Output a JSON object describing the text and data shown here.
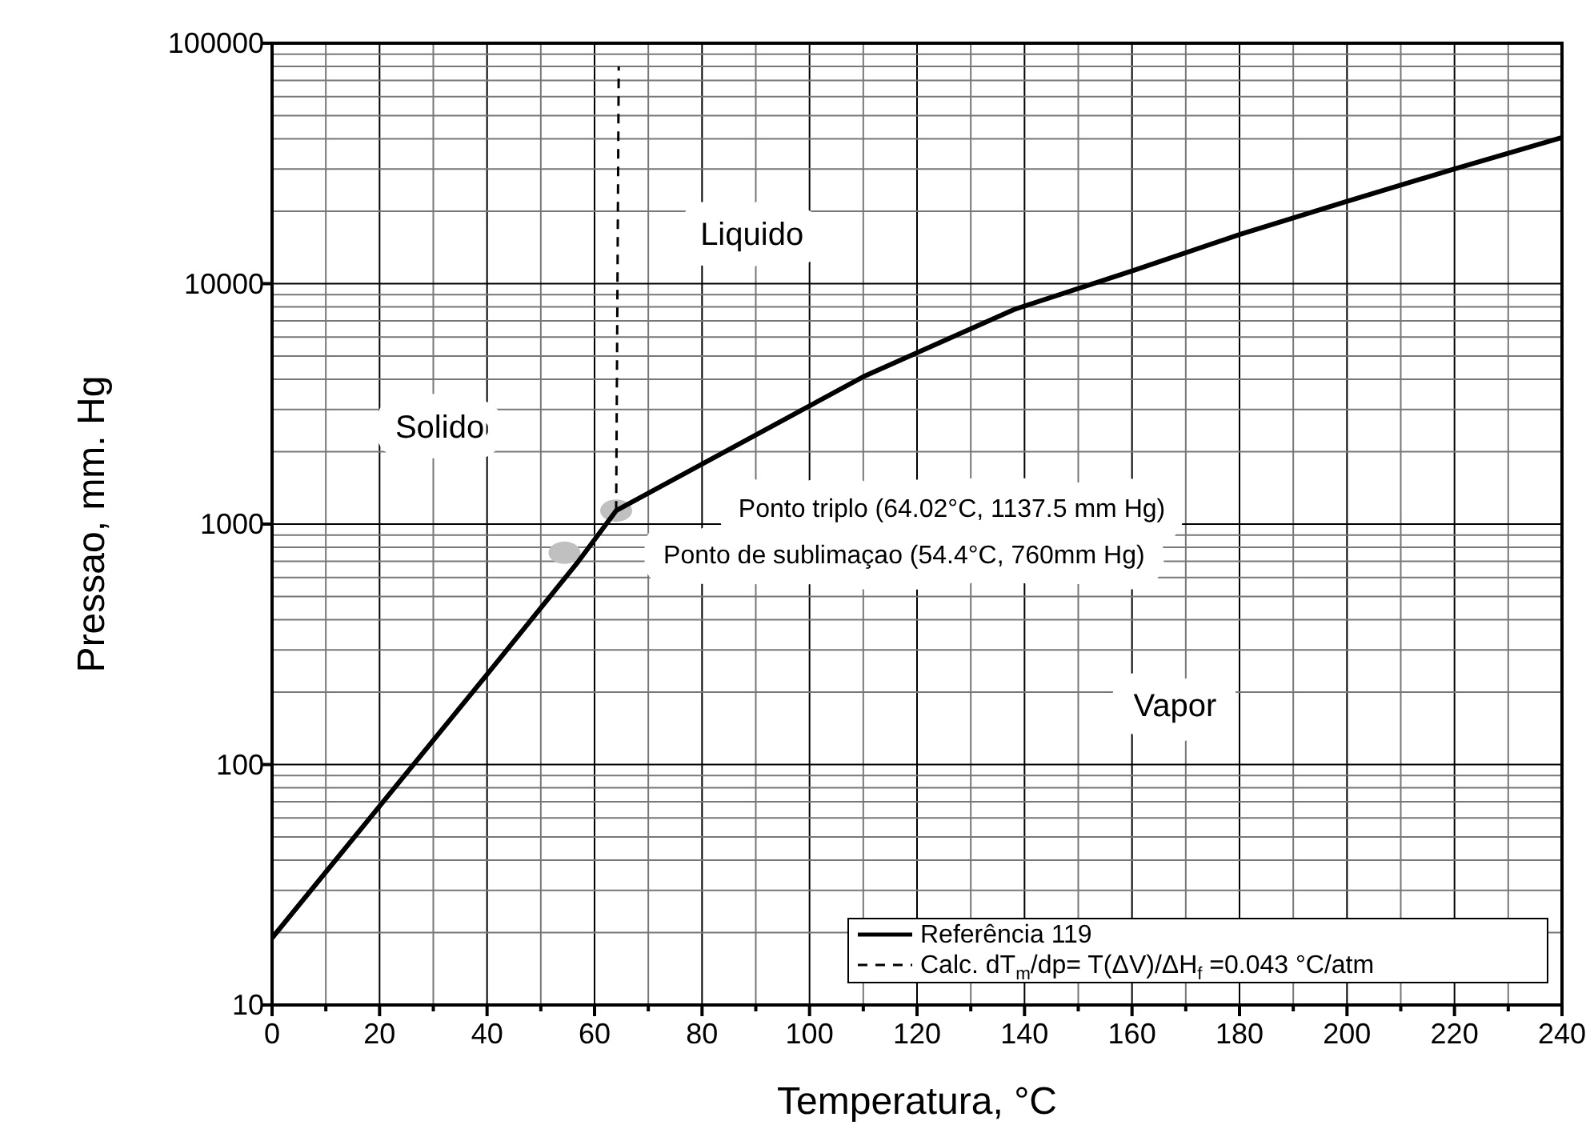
{
  "chart_data": {
    "type": "line",
    "xlabel": "Temperatura, °C",
    "ylabel": "Pressao, mm. Hg",
    "xlim": [
      0,
      240
    ],
    "ylim": [
      10,
      100000
    ],
    "log": "y",
    "xticks": [
      0,
      {
        "value": 10,
        "label": null
      },
      20,
      {
        "value": 30,
        "label": null
      },
      40,
      {
        "value": 50,
        "label": null
      },
      60,
      {
        "value": 70,
        "label": null
      },
      80,
      {
        "value": 90,
        "label": null
      },
      100,
      {
        "value": 110,
        "label": null
      },
      120,
      {
        "value": 130,
        "label": null
      },
      140,
      {
        "value": 150,
        "label": null
      },
      160,
      {
        "value": 170,
        "label": null
      },
      180,
      {
        "value": 190,
        "label": null
      },
      200,
      {
        "value": 210,
        "label": null
      },
      220,
      {
        "value": 230,
        "label": null
      },
      240
    ],
    "yticks": [
      10,
      100,
      1000,
      10000,
      100000
    ],
    "grid": true,
    "legend": "bottom right",
    "series": [
      {
        "name": "Referência 119",
        "color": "#000000",
        "line_style": "solid",
        "x": [
          0,
          40,
          57,
          64.02,
          110,
          138,
          160,
          180,
          200,
          220,
          240
        ],
        "values": [
          19,
          237,
          700,
          1137.5,
          4100,
          7800,
          11300,
          16000,
          22000,
          30000,
          40500
        ]
      },
      {
        "name": "Calc. dT$_{m}$/dp= T(ΔV)/ΔH$_{f}$ =0.043 °C/atm",
        "color": "#000000",
        "line_style": "dashed",
        "x": [
          64.02,
          64.5
        ],
        "values": [
          1137.5,
          80000
        ]
      },
      {
        "type": "scatter",
        "color": "#c0c0c0",
        "marker": "circle",
        "x": [
          54.4,
          64.02
        ],
        "values": [
          760,
          1137.5
        ]
      }
    ],
    "annotations": [
      "Liquido",
      "Solido",
      "Vapor",
      "Ponto triplo (64.02°C, 1137.5 mm Hg)",
      "Ponto de sublimaçao (54.4°C, 760mm Hg)"
    ]
  }
}
